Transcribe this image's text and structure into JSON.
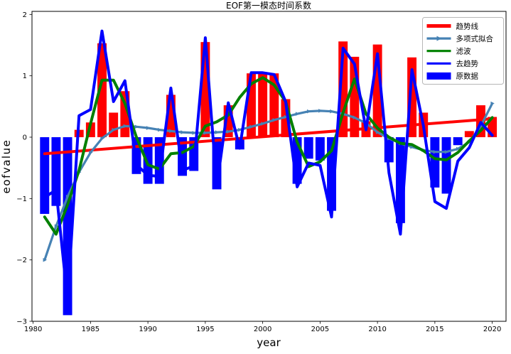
{
  "chart_data": {
    "type": "combo",
    "title": "EOF第一模态时间系数",
    "xlabel": "year",
    "ylabel": "eofvalue",
    "xlim": [
      1979.9,
      2021.2
    ],
    "ylim": [
      -3,
      2.05
    ],
    "grid": false,
    "legend_position": "upper right",
    "x_ticks": {
      "values": [
        1980,
        1985,
        1990,
        1995,
        2000,
        2005,
        2010,
        2015,
        2020
      ],
      "labels": [
        "1980",
        "1985",
        "1990",
        "1995",
        "2000",
        "2005",
        "2010",
        "2015",
        "2020"
      ]
    },
    "y_ticks": {
      "values": [
        2,
        1,
        0,
        -1,
        -2,
        -3
      ],
      "labels": [
        "2",
        "1",
        "0",
        "−1",
        "−2",
        "−3"
      ]
    },
    "years": [
      1981,
      1982,
      1983,
      1984,
      1985,
      1986,
      1987,
      1988,
      1989,
      1990,
      1991,
      1992,
      1993,
      1994,
      1995,
      1996,
      1997,
      1998,
      1999,
      2000,
      2001,
      2002,
      2003,
      2004,
      2005,
      2006,
      2007,
      2008,
      2009,
      2010,
      2011,
      2012,
      2013,
      2014,
      2015,
      2016,
      2017,
      2018,
      2019,
      2020
    ],
    "series": [
      {
        "name": "原数据",
        "type": "bar",
        "color_positive": "#ff0000",
        "color_negative": "#0000ff",
        "bar_width_years": 0.8,
        "values": [
          -1.25,
          -1.12,
          -2.9,
          0.12,
          0.24,
          1.53,
          0.4,
          0.75,
          -0.6,
          -0.76,
          -0.76,
          0.69,
          -0.63,
          -0.55,
          1.55,
          -0.85,
          0.52,
          -0.2,
          1.04,
          1.06,
          1.04,
          0.62,
          -0.76,
          -0.35,
          -0.38,
          -1.2,
          1.56,
          1.31,
          0.26,
          1.51,
          -0.41,
          -1.4,
          1.3,
          0.4,
          -0.82,
          -0.92,
          -0.13,
          0.1,
          0.52,
          0.33
        ]
      },
      {
        "name": "趋势线",
        "type": "line",
        "color": "#ff0000",
        "linewidth": 4,
        "x": [
          1981,
          2020
        ],
        "values": [
          -0.27,
          0.3
        ]
      },
      {
        "name": "多项式拟合",
        "type": "line-markers",
        "color": "#4682b4",
        "linewidth": 3.2,
        "marker": "triangle-right",
        "values": [
          -2.0,
          -1.45,
          -0.97,
          -0.57,
          -0.25,
          -0.02,
          0.12,
          0.18,
          0.17,
          0.15,
          0.12,
          0.1,
          0.08,
          0.07,
          0.07,
          0.08,
          0.09,
          0.12,
          0.17,
          0.22,
          0.28,
          0.33,
          0.38,
          0.42,
          0.43,
          0.42,
          0.38,
          0.32,
          0.23,
          0.08,
          -0.02,
          -0.1,
          -0.16,
          -0.21,
          -0.24,
          -0.24,
          -0.19,
          -0.08,
          0.18,
          0.55
        ]
      },
      {
        "name": "滤波",
        "type": "line",
        "color": "#008000",
        "linewidth": 4,
        "values": [
          -1.3,
          -1.58,
          -1.1,
          -0.54,
          0.22,
          0.93,
          0.93,
          0.55,
          0.0,
          -0.45,
          -0.52,
          -0.27,
          -0.25,
          -0.15,
          0.18,
          0.25,
          0.36,
          0.65,
          0.87,
          0.97,
          0.85,
          0.58,
          -0.08,
          -0.48,
          -0.4,
          -0.22,
          0.4,
          0.95,
          0.38,
          0.15,
          0.0,
          -0.1,
          -0.12,
          -0.22,
          -0.35,
          -0.37,
          -0.25,
          -0.06,
          0.11,
          0.32
        ]
      },
      {
        "name": "去趋势",
        "type": "line",
        "color": "#0000ff",
        "linewidth": 4,
        "values": [
          -0.98,
          -0.86,
          -2.66,
          0.35,
          0.45,
          1.73,
          0.58,
          0.92,
          -0.45,
          -0.62,
          -0.64,
          0.8,
          -0.54,
          -0.47,
          1.62,
          -0.8,
          0.56,
          -0.18,
          1.05,
          1.05,
          1.02,
          0.58,
          -0.81,
          -0.42,
          -0.46,
          -1.3,
          1.45,
          1.19,
          0.12,
          1.36,
          -0.58,
          -1.58,
          1.1,
          0.19,
          -1.05,
          -1.16,
          -0.39,
          -0.17,
          0.24,
          0.03
        ]
      }
    ],
    "legend": [
      {
        "label": "趋势线",
        "kind": "thick-line",
        "color": "#ff0000"
      },
      {
        "label": "多项式拟合",
        "kind": "marker-line",
        "color": "#4682b4"
      },
      {
        "label": "滤波",
        "kind": "line",
        "color": "#008000"
      },
      {
        "label": "去趋势",
        "kind": "line",
        "color": "#0000ff"
      },
      {
        "label": "原数据",
        "kind": "patch",
        "color": "#0000ff"
      }
    ]
  }
}
